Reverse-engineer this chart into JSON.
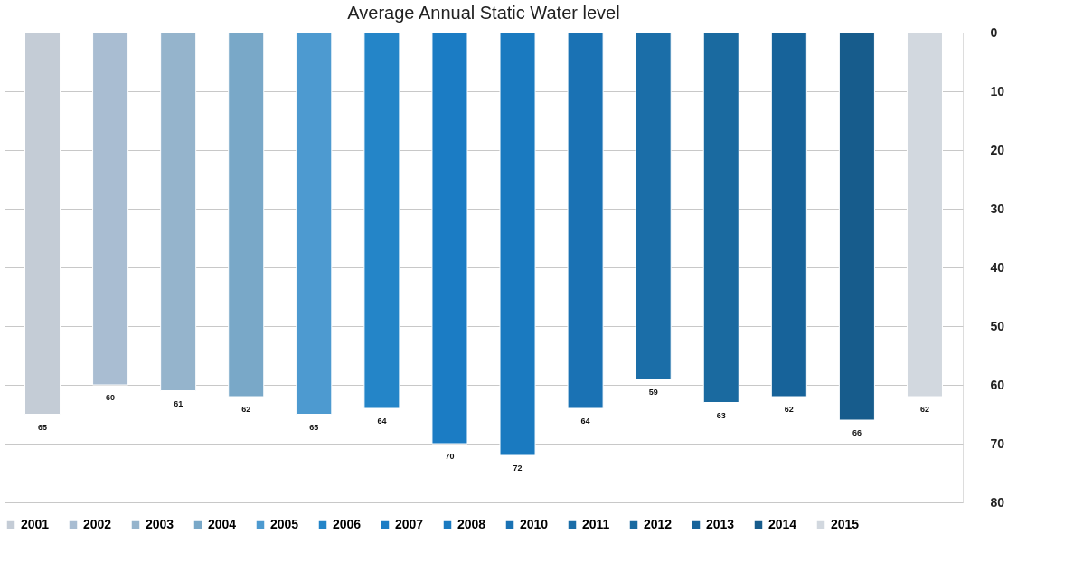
{
  "chart_data": {
    "type": "bar",
    "title": "Average Annual Static Water level",
    "categories": [
      null
    ],
    "series": [
      {
        "name": "2001",
        "color": "#c4ccd6",
        "values": [
          65
        ]
      },
      {
        "name": "2002",
        "color": "#a9bdd2",
        "values": [
          60
        ]
      },
      {
        "name": "2003",
        "color": "#95b4cc",
        "values": [
          61
        ]
      },
      {
        "name": "2004",
        "color": "#79a8c8",
        "values": [
          62
        ]
      },
      {
        "name": "2005",
        "color": "#4d9ad0",
        "values": [
          65
        ]
      },
      {
        "name": "2006",
        "color": "#2485c8",
        "values": [
          64
        ]
      },
      {
        "name": "2007",
        "color": "#1b7cc4",
        "values": [
          70
        ]
      },
      {
        "name": "2008",
        "color": "#1a7ac0",
        "values": [
          72
        ]
      },
      {
        "name": "2010",
        "color": "#1a72b4",
        "values": [
          64
        ]
      },
      {
        "name": "2011",
        "color": "#1b6ea8",
        "values": [
          59
        ]
      },
      {
        "name": "2012",
        "color": "#1a6aa0",
        "values": [
          63
        ]
      },
      {
        "name": "2013",
        "color": "#17639a",
        "values": [
          62
        ]
      },
      {
        "name": "2014",
        "color": "#175c8c",
        "values": [
          66
        ]
      },
      {
        "name": "2015",
        "color": "#d2d8df",
        "values": [
          62
        ]
      }
    ],
    "ylim": [
      80,
      0
    ],
    "yticks": [
      0,
      10,
      20,
      30,
      40,
      50,
      60,
      70,
      80
    ],
    "grid": "y",
    "legend": "bottom",
    "data_labels": true,
    "tick_labels": "y"
  }
}
